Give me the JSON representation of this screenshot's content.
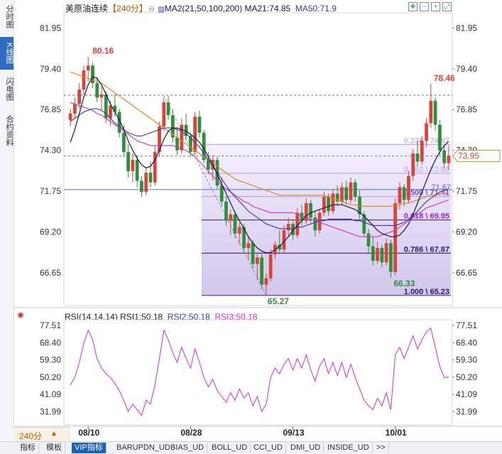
{
  "side_tabs": [
    {
      "label": "分时图",
      "active": false
    },
    {
      "label": "K线图",
      "active": true
    },
    {
      "label": "闪电图",
      "active": false
    },
    {
      "label": "合约资料",
      "active": false
    }
  ],
  "header": {
    "title": "美原油连续",
    "period": "【240分】",
    "indicator_name": "MA2(21,50,100,200)",
    "ma21_label": "MA21:74.85",
    "ma50_label": "MA50:71.9"
  },
  "rsi_header": {
    "name": "RSI(14,14,14)",
    "rsi1_label": "RSI1:50.18",
    "rsi2_label": "RSI2:50.18",
    "rsi3_label": "RSI3:50.18"
  },
  "period_selector": {
    "label": "240分",
    "arrow": "▲"
  },
  "toolbar": {
    "items": [
      "指标",
      "模板",
      "VIP指标",
      "BARUPDN_UD",
      "BIAS_UD",
      "BOLL_UD",
      "CCI_UD",
      "DMI_UD",
      "INSIDE_UD",
      ">>"
    ],
    "active_index": 2
  },
  "colors": {
    "up": "#d9443a",
    "down": "#2f8f3a",
    "ma21": "#1a1a40",
    "ma50": "#3a3aa8",
    "ma100": "#cc3fbf",
    "ma200": "#e08a25",
    "rsi": "#cc2fd6",
    "fib_fill": "#c9bde8",
    "hline_blue": "#3a5fb5"
  },
  "chart_data": {
    "type": "candlestick",
    "price_axis": {
      "ticks": [
        81.95,
        79.4,
        76.85,
        74.3,
        71.75,
        69.2,
        66.65
      ],
      "ylim": [
        64.6,
        82.9
      ]
    },
    "current_price": "73.95",
    "x_ticks": [
      "08/10",
      "08/28",
      "09/13",
      "10/01"
    ],
    "candles": [
      [
        76.2,
        76.9,
        75.8,
        76.6
      ],
      [
        76.6,
        77.6,
        76.3,
        77.2
      ],
      [
        77.2,
        78.5,
        76.9,
        78.1
      ],
      [
        78.1,
        79.6,
        77.8,
        79.3
      ],
      [
        79.3,
        80.16,
        78.6,
        79.6
      ],
      [
        79.6,
        79.8,
        78.2,
        78.5
      ],
      [
        78.5,
        78.9,
        77.3,
        77.6
      ],
      [
        77.6,
        78.3,
        76.8,
        77.8
      ],
      [
        77.8,
        78.0,
        76.0,
        76.3
      ],
      [
        76.3,
        77.4,
        75.8,
        77.1
      ],
      [
        77.1,
        77.8,
        76.4,
        76.7
      ],
      [
        76.7,
        76.9,
        75.1,
        75.4
      ],
      [
        75.4,
        75.9,
        73.9,
        74.2
      ],
      [
        74.2,
        74.7,
        72.6,
        73.0
      ],
      [
        73.0,
        74.1,
        72.3,
        73.7
      ],
      [
        73.7,
        74.0,
        72.0,
        72.4
      ],
      [
        72.4,
        72.7,
        71.4,
        71.7
      ],
      [
        71.7,
        73.2,
        71.5,
        72.9
      ],
      [
        72.9,
        73.6,
        72.0,
        72.3
      ],
      [
        72.3,
        74.6,
        72.1,
        74.2
      ],
      [
        74.2,
        76.1,
        73.9,
        75.8
      ],
      [
        75.8,
        77.6,
        75.5,
        77.3
      ],
      [
        77.3,
        77.7,
        76.2,
        76.5
      ],
      [
        76.5,
        76.9,
        74.8,
        75.1
      ],
      [
        75.1,
        75.7,
        74.0,
        74.3
      ],
      [
        74.3,
        76.3,
        74.1,
        75.9
      ],
      [
        75.9,
        76.6,
        74.9,
        75.2
      ],
      [
        75.2,
        75.4,
        73.9,
        74.2
      ],
      [
        74.2,
        76.7,
        74.0,
        76.4
      ],
      [
        76.4,
        76.8,
        75.1,
        75.4
      ],
      [
        75.4,
        75.6,
        73.5,
        73.7
      ],
      [
        73.7,
        74.2,
        72.8,
        73.1
      ],
      [
        73.1,
        74.0,
        72.4,
        73.7
      ],
      [
        73.7,
        73.9,
        71.9,
        72.1
      ],
      [
        72.1,
        72.6,
        70.8,
        71.1
      ],
      [
        71.1,
        71.4,
        69.6,
        69.9
      ],
      [
        69.9,
        70.6,
        69.0,
        70.3
      ],
      [
        70.3,
        70.5,
        68.8,
        69.1
      ],
      [
        69.1,
        69.8,
        68.4,
        69.5
      ],
      [
        69.5,
        69.7,
        67.9,
        68.2
      ],
      [
        68.2,
        68.9,
        67.4,
        68.5
      ],
      [
        68.5,
        68.7,
        66.9,
        67.2
      ],
      [
        67.2,
        67.9,
        66.2,
        67.6
      ],
      [
        67.6,
        67.8,
        65.6,
        65.9
      ],
      [
        65.9,
        66.6,
        65.27,
        66.3
      ],
      [
        66.3,
        68.1,
        66.1,
        67.8
      ],
      [
        67.8,
        68.6,
        67.5,
        68.4
      ],
      [
        68.4,
        69.3,
        67.9,
        68.1
      ],
      [
        68.1,
        69.6,
        67.9,
        69.3
      ],
      [
        69.3,
        70.1,
        68.9,
        69.7
      ],
      [
        69.7,
        69.9,
        68.7,
        69.0
      ],
      [
        69.0,
        70.7,
        68.8,
        70.4
      ],
      [
        70.4,
        70.9,
        69.6,
        69.9
      ],
      [
        69.9,
        71.3,
        69.7,
        71.0
      ],
      [
        71.0,
        71.2,
        69.8,
        70.1
      ],
      [
        70.1,
        70.5,
        68.9,
        69.3
      ],
      [
        69.3,
        70.6,
        69.1,
        70.4
      ],
      [
        70.4,
        71.7,
        70.2,
        71.4
      ],
      [
        71.4,
        71.6,
        70.2,
        70.5
      ],
      [
        70.5,
        71.9,
        70.3,
        71.6
      ],
      [
        71.6,
        72.1,
        70.8,
        71.1
      ],
      [
        71.1,
        72.3,
        70.9,
        72.0
      ],
      [
        72.0,
        72.4,
        70.9,
        71.2
      ],
      [
        71.2,
        72.6,
        71.0,
        72.3
      ],
      [
        72.3,
        72.5,
        71.1,
        71.4
      ],
      [
        71.4,
        71.8,
        70.0,
        70.3
      ],
      [
        70.3,
        70.5,
        68.9,
        69.1
      ],
      [
        69.1,
        69.4,
        67.9,
        68.3
      ],
      [
        68.3,
        68.9,
        67.1,
        67.4
      ],
      [
        67.4,
        68.6,
        67.2,
        68.2
      ],
      [
        68.2,
        68.4,
        67.0,
        67.3
      ],
      [
        67.3,
        68.8,
        67.1,
        68.5
      ],
      [
        68.5,
        68.7,
        66.33,
        66.7
      ],
      [
        66.7,
        71.3,
        66.5,
        71.0
      ],
      [
        71.0,
        72.3,
        70.6,
        72.0
      ],
      [
        72.0,
        72.2,
        70.8,
        71.2
      ],
      [
        71.2,
        73.0,
        71.0,
        72.7
      ],
      [
        72.7,
        74.4,
        72.4,
        74.1
      ],
      [
        74.1,
        74.9,
        73.3,
        73.6
      ],
      [
        73.6,
        75.2,
        73.4,
        74.9
      ],
      [
        74.9,
        76.3,
        74.5,
        76.0
      ],
      [
        76.0,
        78.46,
        75.7,
        77.4
      ],
      [
        77.4,
        77.6,
        75.5,
        75.9
      ],
      [
        75.9,
        76.2,
        74.0,
        74.3
      ],
      [
        74.3,
        74.6,
        73.2,
        73.5
      ],
      [
        73.5,
        74.6,
        73.1,
        73.95
      ]
    ],
    "moving_averages": {
      "MA21": [
        74.8,
        75.6,
        76.6,
        77.6,
        78.4,
        78.9,
        78.8,
        78.4,
        77.8,
        77.2,
        76.7,
        76.2,
        75.6,
        74.9,
        74.3,
        73.8,
        73.4,
        73.2,
        73.3,
        73.7,
        74.3,
        75.0,
        75.5,
        75.7,
        75.7,
        75.6,
        75.5,
        75.3,
        75.1,
        74.8,
        74.4,
        73.9,
        73.4,
        72.8,
        72.2,
        71.6,
        71.0,
        70.4,
        69.9,
        69.4,
        68.9,
        68.5,
        68.2,
        68.0,
        67.9,
        67.9,
        68.1,
        68.3,
        68.6,
        68.9,
        69.3,
        69.6,
        69.9,
        70.2,
        70.4,
        70.5,
        70.6,
        70.7,
        70.8,
        70.9,
        70.9,
        70.9,
        70.8,
        70.7,
        70.6,
        70.4,
        70.2,
        69.9,
        69.6,
        69.3,
        69.1,
        69.0,
        68.9,
        68.9,
        69.0,
        69.3,
        69.7,
        70.3,
        71.0,
        71.7,
        72.4,
        73.1,
        73.7,
        74.2,
        74.6,
        74.85
      ],
      "MA50": [
        76.1,
        76.3,
        76.5,
        76.7,
        76.8,
        76.9,
        76.9,
        76.8,
        76.6,
        76.3,
        76.0,
        75.8,
        75.6,
        75.4,
        75.3,
        75.2,
        75.2,
        75.3,
        75.4,
        75.5,
        75.6,
        75.7,
        75.7,
        75.7,
        75.6,
        75.5,
        75.3,
        75.1,
        74.8,
        74.5,
        74.1,
        73.7,
        73.3,
        72.9,
        72.5,
        72.1,
        71.7,
        71.4,
        71.1,
        70.8,
        70.5,
        70.3,
        70.1,
        69.9,
        69.7,
        69.6,
        69.5,
        69.4,
        69.4,
        69.4,
        69.4,
        69.5,
        69.5,
        69.6,
        69.7,
        69.8,
        69.9,
        69.9,
        70.0,
        70.0,
        70.0,
        70.0,
        70.0,
        70.0,
        69.9,
        69.9,
        69.8,
        69.7,
        69.6,
        69.6,
        69.6,
        69.6,
        69.6,
        69.6,
        69.7,
        69.8,
        70.0,
        70.2,
        70.5,
        70.8,
        71.1,
        71.3,
        71.5,
        71.7,
        71.8,
        71.9
      ],
      "MA100": [
        77.3,
        77.2,
        77.1,
        77.0,
        76.9,
        76.8,
        76.6,
        76.5,
        76.3,
        76.1,
        75.9,
        75.7,
        75.5,
        75.3,
        75.1,
        74.9,
        74.8,
        74.7,
        74.6,
        74.6,
        74.6,
        74.6,
        74.6,
        74.6,
        74.5,
        74.4,
        74.3,
        74.1,
        73.9,
        73.6,
        73.3,
        73.0,
        72.7,
        72.4,
        72.1,
        71.9,
        71.7,
        71.5,
        71.3,
        71.1,
        71.0,
        70.8,
        70.7,
        70.6,
        70.5,
        70.4,
        70.4,
        70.4,
        70.4,
        70.4,
        70.4,
        70.3,
        70.2,
        70.1,
        70.0,
        69.9,
        69.8,
        69.7,
        69.6,
        69.5,
        69.4,
        69.3,
        69.2,
        69.1,
        69.0,
        68.9,
        68.9,
        68.9,
        68.9,
        68.9,
        69.0,
        69.1,
        69.2,
        69.3,
        69.5,
        69.7,
        69.9,
        70.1,
        70.3,
        70.5,
        70.7,
        70.8,
        70.9,
        71.0,
        71.1,
        71.2
      ],
      "MA200": [
        79.2,
        79.1,
        79.0,
        78.9,
        78.8,
        78.7,
        78.6,
        78.5,
        78.3,
        78.1,
        77.9,
        77.7,
        77.5,
        77.3,
        77.1,
        76.9,
        76.7,
        76.5,
        76.3,
        76.1,
        75.9,
        75.7,
        75.5,
        75.3,
        75.1,
        74.9,
        74.7,
        74.5,
        74.3,
        74.1,
        73.9,
        73.7,
        73.5,
        73.3,
        73.1,
        72.9,
        72.7,
        72.5,
        72.4,
        72.3,
        72.2,
        72.1,
        72.0,
        71.9,
        71.8,
        71.7,
        71.6,
        71.5,
        71.5,
        71.5,
        71.5,
        71.5,
        71.5,
        71.5,
        71.5,
        71.5,
        71.5,
        71.5,
        71.4,
        71.3,
        71.2,
        71.1,
        71.0,
        70.9,
        70.9,
        70.8,
        70.8,
        70.8,
        70.8,
        70.8,
        70.8,
        70.8,
        70.8,
        70.9,
        70.9,
        71.0,
        71.0,
        71.1,
        71.2,
        71.3,
        71.4,
        71.5,
        71.5,
        71.6,
        71.6,
        71.7
      ]
    },
    "annotations": {
      "high_label": "80.16",
      "high_index": 4,
      "low_label": "65.27",
      "low_index": 44,
      "low2_label": "66.33",
      "low2_index": 72,
      "high2_label": "78.46",
      "high2_index": 81,
      "ma200_end_label": "71.67",
      "hline_dash": 77.75,
      "hline_current": 73.95,
      "hline_solid": 71.85
    },
    "fibonacci": {
      "start_index": 30,
      "end_index": 85,
      "levels": [
        {
          "ratio_label": "0.236 \\ 74.67",
          "price": 74.67
        },
        {
          "ratio_label": "0.382 \\ 72.86",
          "price": 72.86
        },
        {
          "ratio_label": "0.500 \\ 71.41",
          "price": 71.41
        },
        {
          "ratio_label": "0.618 \\ 69.95",
          "price": 69.95
        },
        {
          "ratio_label": "0.786 \\ 67.87",
          "price": 67.87
        },
        {
          "ratio_label": "1.000 \\ 65.23",
          "price": 65.23
        }
      ]
    },
    "rsi": {
      "ticks": [
        77.51,
        68.4,
        59.3,
        50.2,
        41.09,
        31.99
      ],
      "ylim": [
        25.0,
        80.5
      ],
      "values": [
        46,
        50,
        58,
        68,
        75,
        70,
        60,
        55,
        52,
        50,
        47,
        43,
        38,
        32,
        36,
        33,
        30,
        38,
        36,
        46,
        60,
        75,
        70,
        63,
        58,
        66,
        60,
        55,
        65,
        58,
        50,
        45,
        49,
        43,
        40,
        37,
        42,
        38,
        44,
        39,
        42,
        35,
        40,
        32,
        36,
        50,
        55,
        52,
        57,
        60,
        54,
        60,
        55,
        62,
        54,
        48,
        56,
        60,
        52,
        58,
        51,
        58,
        50,
        57,
        50,
        44,
        38,
        35,
        33,
        39,
        35,
        42,
        33,
        62,
        66,
        60,
        66,
        72,
        65,
        70,
        74,
        76,
        66,
        56,
        50,
        50.18
      ]
    }
  }
}
